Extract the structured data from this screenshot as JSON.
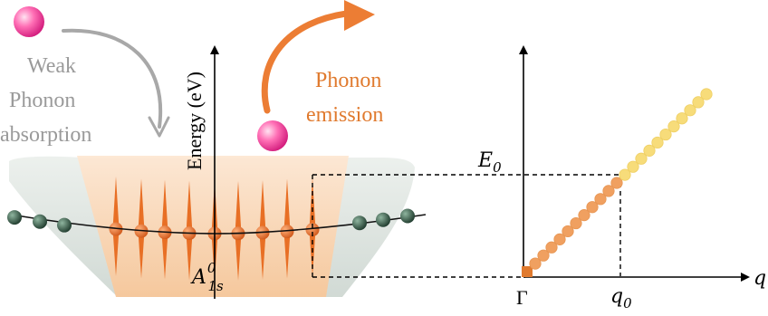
{
  "left_panel": {
    "weak_absorption_label": [
      "Weak",
      "Phonon",
      "absorption"
    ],
    "emission_label": [
      "Phonon",
      "emission"
    ],
    "energy_axis_label": "Energy (eV)",
    "ground_state_label": {
      "base": "A",
      "sup": "0",
      "sub": "1s"
    }
  },
  "right_panel": {
    "x_axis_label": "q",
    "y_tick_label": {
      "base": "E",
      "sub": "0"
    },
    "x_tick_labels": [
      {
        "base": "Γ",
        "sub": ""
      },
      {
        "base": "q",
        "sub": "0"
      }
    ]
  },
  "colors": {
    "orange": "#e07a2e",
    "light_orange": "#f0a060",
    "yellow": "#f5d76e",
    "gray_text": "#9a9a9a",
    "green_dot": "#2f4f3f",
    "pink_ball": "#ff5ca8"
  }
}
